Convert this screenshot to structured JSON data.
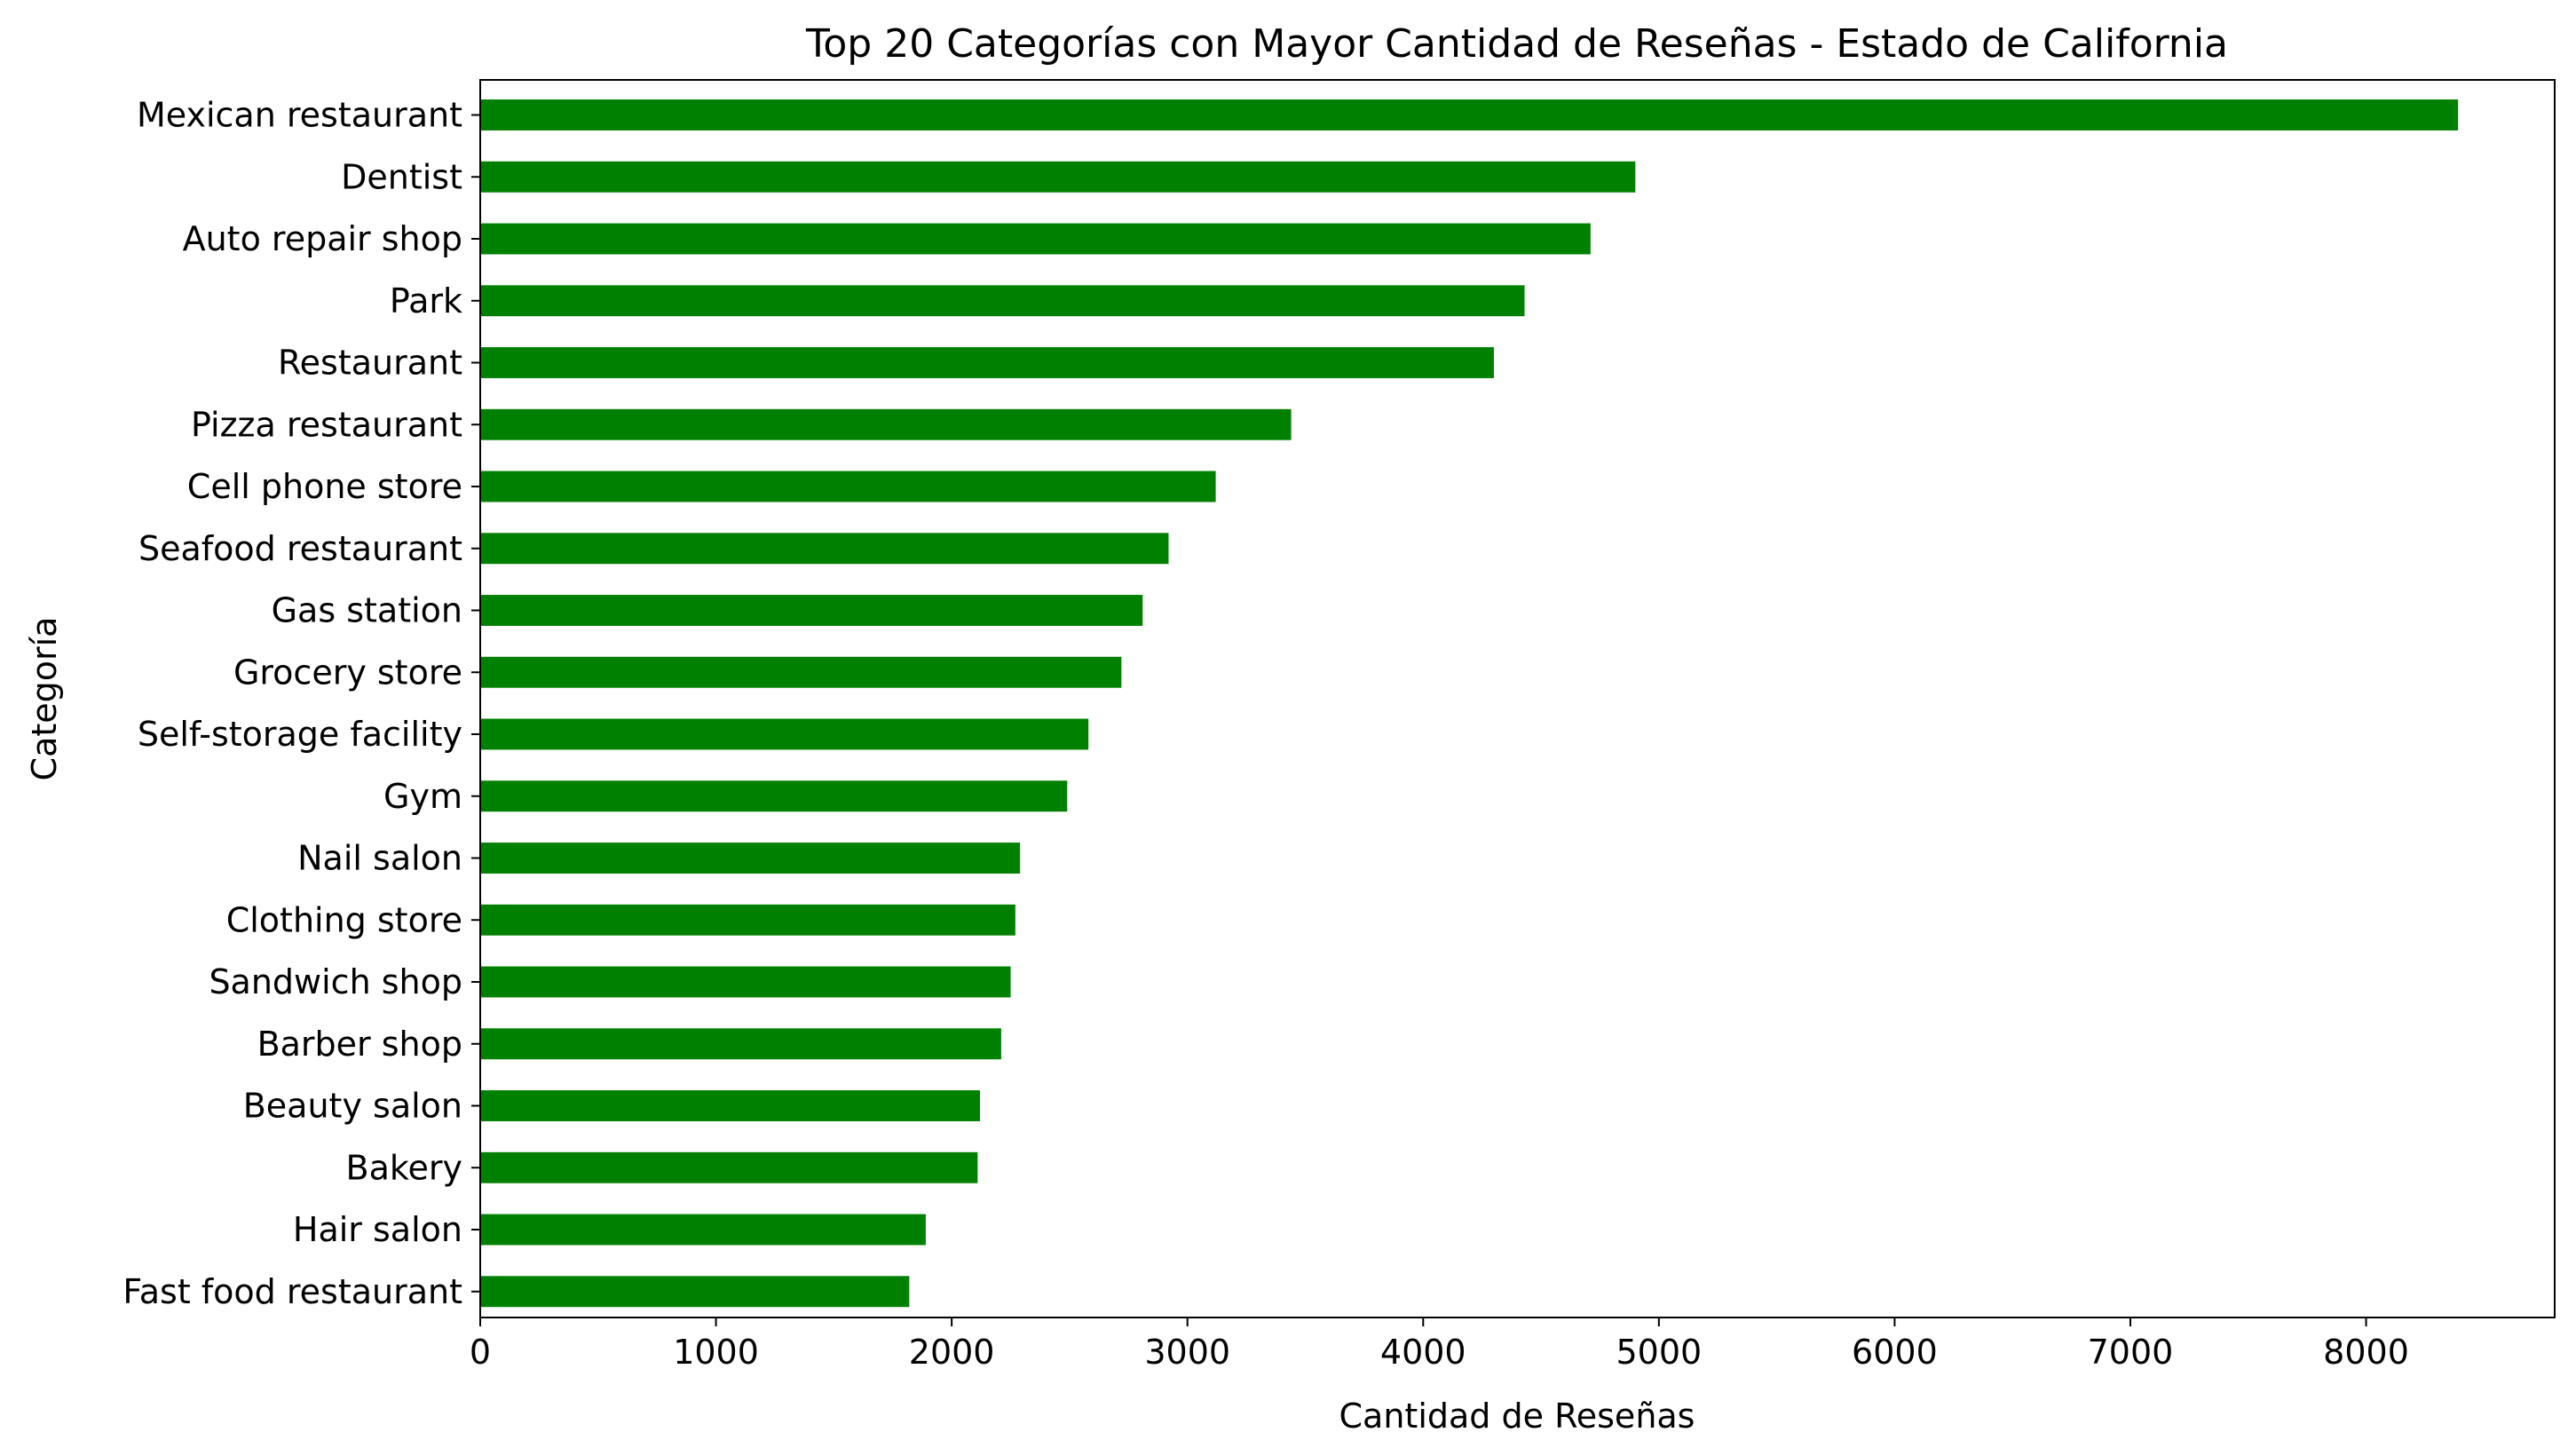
{
  "chart_data": {
    "type": "bar",
    "orientation": "horizontal",
    "title": "Top 20 Categorías con Mayor Cantidad de Reseñas - Estado de California",
    "xlabel": "Cantidad de Reseñas",
    "ylabel": "Categoría",
    "xlim": [
      0,
      8800
    ],
    "xticks": [
      0,
      1000,
      2000,
      3000,
      4000,
      5000,
      6000,
      7000,
      8000
    ],
    "xtick_labels": [
      "0",
      "1000",
      "2000",
      "3000",
      "4000",
      "5000",
      "6000",
      "7000",
      "8000"
    ],
    "grid": false,
    "bar_color": "#008000",
    "categories": [
      "Mexican restaurant",
      "Dentist",
      "Auto repair shop",
      "Park",
      "Restaurant",
      "Pizza restaurant",
      "Cell phone store",
      "Seafood restaurant",
      "Gas station",
      "Grocery store",
      "Self-storage facility",
      "Gym",
      "Nail salon",
      "Clothing store",
      "Sandwich shop",
      "Barber shop",
      "Beauty salon",
      "Bakery",
      "Hair salon",
      "Fast food restaurant"
    ],
    "values": [
      8390,
      4900,
      4710,
      4430,
      4300,
      3440,
      3120,
      2920,
      2810,
      2720,
      2580,
      2490,
      2290,
      2270,
      2250,
      2210,
      2120,
      2110,
      1890,
      1820
    ]
  }
}
